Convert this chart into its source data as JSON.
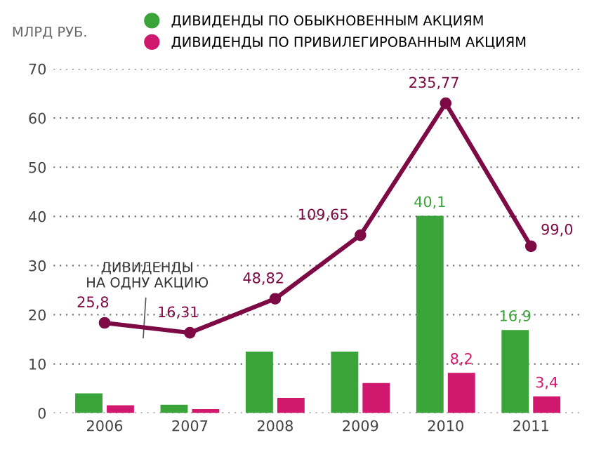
{
  "chart_data": {
    "type": "bar",
    "ylabel": "МЛРД РУБ.",
    "categories": [
      "2006",
      "2007",
      "2008",
      "2009",
      "2010",
      "2011"
    ],
    "series": [
      {
        "name": "ДИВИДЕНДЫ ПО ОБЫКНОВЕННЫМ АКЦИЯМ",
        "color": "#3aa33a",
        "values": [
          4.0,
          1.7,
          12.5,
          12.5,
          40.1,
          16.9
        ],
        "value_labels": [
          null,
          null,
          null,
          null,
          "40,1",
          "16,9"
        ]
      },
      {
        "name": "ДИВИДЕНДЫ ПО ПРИВИЛЕГИРОВАННЫМ АКЦИЯМ",
        "color": "#d0186f",
        "values": [
          1.6,
          0.8,
          3.1,
          6.1,
          8.2,
          3.4
        ],
        "value_labels": [
          null,
          null,
          null,
          null,
          "8,2",
          "3,4"
        ]
      },
      {
        "type": "line",
        "axis": "y2",
        "color": "#7d0a45",
        "values": [
          25.8,
          16.31,
          48.82,
          109.65,
          235.77,
          99.0
        ],
        "value_labels": [
          "25,8",
          "16,31",
          "48,82",
          "109,65",
          "235,77",
          "99,0"
        ],
        "marker": "circle"
      }
    ],
    "annotations": [
      "ДИВИДЕНДЫ\nНА ОДНУ АКЦИЮ"
    ],
    "ylim": [
      0,
      70
    ],
    "yticks": [
      0,
      10,
      20,
      30,
      40,
      50,
      60,
      70
    ],
    "grid": "y",
    "legend": "top left"
  }
}
